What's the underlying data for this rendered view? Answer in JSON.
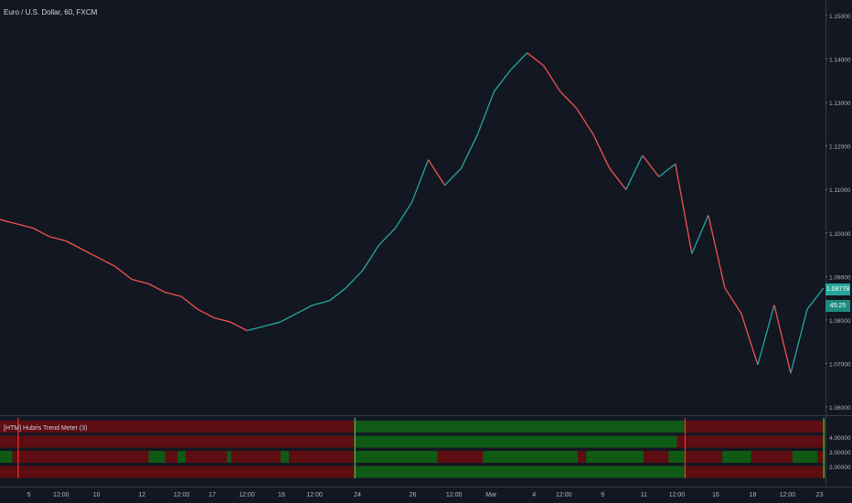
{
  "header": {
    "symbol_title": "Euro / U.S. Dollar, 60, FXCM"
  },
  "indicator": {
    "title": "[HTM] Hubris Trend Meter (3)",
    "colors": {
      "bull": "#0f5a14",
      "bear": "#5e0d12",
      "bull_line": "#3fd13f",
      "bear_line": "#ff2a2a"
    },
    "rows": [
      [
        [
          0,
          0.43,
          "bear"
        ],
        [
          0.43,
          0.83,
          "bull"
        ],
        [
          0.83,
          1,
          "bear"
        ]
      ],
      [
        [
          0,
          0.43,
          "bear"
        ],
        [
          0.43,
          0.82,
          "bull"
        ],
        [
          0.82,
          0.835,
          "bear"
        ],
        [
          0.835,
          1,
          "bear"
        ]
      ],
      [
        [
          0,
          0.015,
          "bull"
        ],
        [
          0.015,
          0.18,
          "bear"
        ],
        [
          0.18,
          0.2,
          "bull"
        ],
        [
          0.2,
          0.215,
          "bear"
        ],
        [
          0.215,
          0.225,
          "bull"
        ],
        [
          0.225,
          0.275,
          "bear"
        ],
        [
          0.275,
          0.28,
          "bull"
        ],
        [
          0.28,
          0.34,
          "bear"
        ],
        [
          0.34,
          0.35,
          "bull"
        ],
        [
          0.35,
          0.43,
          "bear"
        ],
        [
          0.43,
          0.53,
          "bull"
        ],
        [
          0.53,
          0.585,
          "bear"
        ],
        [
          0.585,
          0.7,
          "bull"
        ],
        [
          0.7,
          0.71,
          "bear"
        ],
        [
          0.71,
          0.78,
          "bull"
        ],
        [
          0.78,
          0.81,
          "bear"
        ],
        [
          0.81,
          0.83,
          "bull"
        ],
        [
          0.83,
          0.875,
          "bear"
        ],
        [
          0.875,
          0.91,
          "bull"
        ],
        [
          0.91,
          0.96,
          "bear"
        ],
        [
          0.96,
          0.99,
          "bull"
        ],
        [
          0.99,
          1,
          "bear"
        ]
      ],
      [
        [
          0,
          0.43,
          "bear"
        ],
        [
          0.43,
          0.83,
          "bull"
        ],
        [
          0.83,
          1,
          "bear"
        ]
      ]
    ],
    "dividers": [
      [
        0.022,
        "bear"
      ],
      [
        0.43,
        "bull"
      ],
      [
        0.83,
        "bear"
      ],
      [
        0.998,
        "bull"
      ]
    ]
  },
  "price_axis": {
    "labels": [
      "1.15000",
      "1.14000",
      "1.13000",
      "1.12000",
      "1.11000",
      "1.10000",
      "1.09000",
      "1.08000",
      "1.07000",
      "1.06000"
    ],
    "ind_labels": [
      "4.00000",
      "3.00000",
      "2.00000"
    ],
    "current_price": "1.08778",
    "countdown": "45:25"
  },
  "time_axis": {
    "labels": [
      {
        "t": "5",
        "f": 0.035
      },
      {
        "t": "12:00",
        "f": 0.074
      },
      {
        "t": "10",
        "f": 0.117
      },
      {
        "t": "12",
        "f": 0.172
      },
      {
        "t": "12:00",
        "f": 0.22
      },
      {
        "t": "17",
        "f": 0.257
      },
      {
        "t": "12:00",
        "f": 0.299
      },
      {
        "t": "19",
        "f": 0.341
      },
      {
        "t": "12:00",
        "f": 0.381
      },
      {
        "t": "24",
        "f": 0.433
      },
      {
        "t": "26",
        "f": 0.5
      },
      {
        "t": "12:00",
        "f": 0.55
      },
      {
        "t": "Mar",
        "f": 0.595
      },
      {
        "t": "4",
        "f": 0.647
      },
      {
        "t": "12:00",
        "f": 0.683
      },
      {
        "t": "9",
        "f": 0.73
      },
      {
        "t": "11",
        "f": 0.78
      },
      {
        "t": "12:00",
        "f": 0.82
      },
      {
        "t": "16",
        "f": 0.867
      },
      {
        "t": "18",
        "f": 0.912
      },
      {
        "t": "12:00",
        "f": 0.954
      },
      {
        "t": "23",
        "f": 0.993
      }
    ]
  },
  "chart_data": {
    "type": "line",
    "x": [
      0,
      2,
      4,
      6,
      8,
      10,
      12,
      14,
      16,
      18,
      20,
      22,
      24,
      26,
      28,
      30,
      32,
      34,
      36,
      38,
      40,
      42,
      44,
      46,
      48,
      50,
      52,
      54,
      56,
      58,
      60,
      62,
      64,
      66,
      68,
      70,
      72,
      74,
      76,
      78,
      80,
      82,
      84,
      86,
      88,
      90,
      92,
      94,
      96,
      98,
      100
    ],
    "values": [
      1.1045,
      1.1035,
      1.1025,
      1.1005,
      1.0995,
      1.0975,
      1.0955,
      1.0935,
      1.0905,
      1.0895,
      1.0875,
      1.0865,
      1.0835,
      1.0815,
      1.0805,
      1.0785,
      1.0795,
      1.0805,
      1.0825,
      1.0845,
      1.0855,
      1.0885,
      1.0925,
      1.0985,
      1.1025,
      1.1085,
      1.1185,
      1.1125,
      1.1165,
      1.1245,
      1.1345,
      1.1395,
      1.1435,
      1.1405,
      1.1345,
      1.1305,
      1.1245,
      1.1165,
      1.1115,
      1.1195,
      1.1145,
      1.1175,
      1.0965,
      1.1055,
      1.0885,
      1.0825,
      1.0705,
      1.0845,
      1.0685,
      1.0835,
      1.0885
    ],
    "ylim": [
      1.06,
      1.155
    ],
    "up_color": "#26a69a",
    "down_color": "#ef5350"
  }
}
